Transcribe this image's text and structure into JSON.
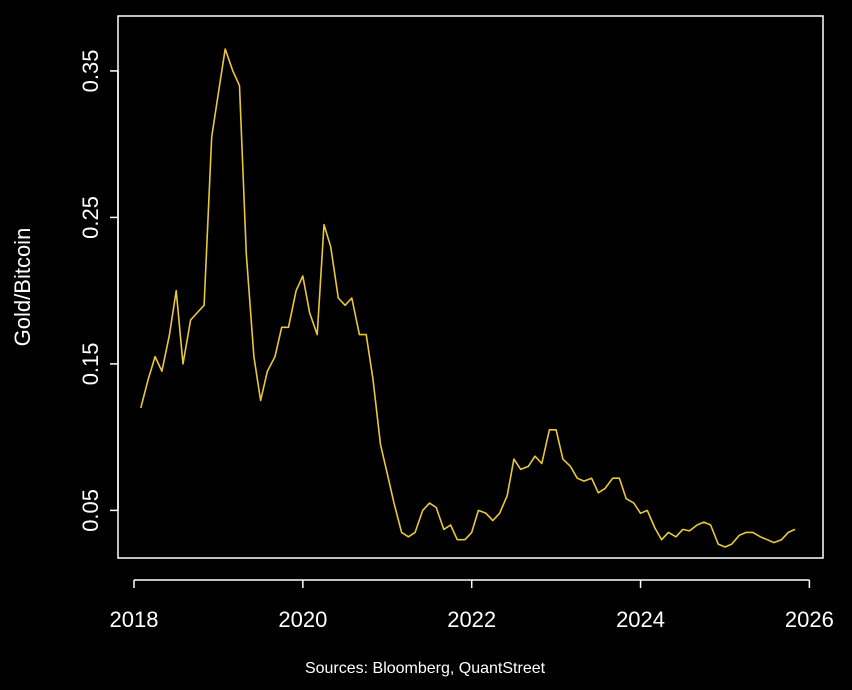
{
  "chart_data": {
    "type": "line",
    "title": "",
    "xlabel": "",
    "ylabel": "Gold/Bitcoin",
    "caption": "Sources: Bloomberg, QuantStreet",
    "xlim": [
      2018,
      2026
    ],
    "ylim": [
      0.0175,
      0.3875
    ],
    "x_ticks": [
      "2018",
      "2020",
      "2022",
      "2024",
      "2026"
    ],
    "y_ticks": [
      "0.05",
      "0.15",
      "0.25",
      "0.35"
    ],
    "grid": false,
    "line_color": "#e8c83a",
    "background_color": "#000000",
    "series": [
      {
        "x": [
          2018.08,
          2018.17,
          2018.25,
          2018.33,
          2018.42,
          2018.5,
          2018.58,
          2018.67,
          2018.75,
          2018.83,
          2018.92,
          2019.0,
          2019.08,
          2019.17,
          2019.25,
          2019.33,
          2019.42,
          2019.5,
          2019.58,
          2019.67,
          2019.75,
          2019.83,
          2019.92,
          2020.0,
          2020.08,
          2020.17,
          2020.25,
          2020.33,
          2020.42,
          2020.5,
          2020.58,
          2020.67,
          2020.75,
          2020.83,
          2020.92,
          2021.0,
          2021.08,
          2021.17,
          2021.25,
          2021.33,
          2021.42,
          2021.5,
          2021.58,
          2021.67,
          2021.75,
          2021.83,
          2021.92,
          2022.0,
          2022.08,
          2022.17,
          2022.25,
          2022.33,
          2022.42,
          2022.5,
          2022.58,
          2022.67,
          2022.75,
          2022.83,
          2022.92,
          2023.0,
          2023.08,
          2023.17,
          2023.25,
          2023.33,
          2023.42,
          2023.5,
          2023.58,
          2023.67,
          2023.75,
          2023.83,
          2023.92,
          2024.0,
          2024.08,
          2024.17,
          2024.25,
          2024.33,
          2024.42,
          2024.5,
          2024.58,
          2024.67,
          2024.75,
          2024.83,
          2024.92,
          2025.0,
          2025.08,
          2025.17,
          2025.25,
          2025.33,
          2025.42,
          2025.5,
          2025.58,
          2025.67,
          2025.75,
          2025.83
        ],
        "values": [
          0.12,
          0.14,
          0.155,
          0.145,
          0.17,
          0.2,
          0.15,
          0.18,
          0.185,
          0.19,
          0.305,
          0.335,
          0.365,
          0.35,
          0.34,
          0.225,
          0.155,
          0.125,
          0.145,
          0.155,
          0.175,
          0.175,
          0.2,
          0.21,
          0.185,
          0.17,
          0.245,
          0.23,
          0.195,
          0.19,
          0.195,
          0.17,
          0.17,
          0.14,
          0.095,
          0.075,
          0.055,
          0.035,
          0.032,
          0.035,
          0.05,
          0.055,
          0.052,
          0.037,
          0.04,
          0.03,
          0.03,
          0.035,
          0.05,
          0.048,
          0.043,
          0.048,
          0.06,
          0.085,
          0.078,
          0.08,
          0.087,
          0.082,
          0.105,
          0.105,
          0.085,
          0.08,
          0.072,
          0.07,
          0.072,
          0.062,
          0.065,
          0.072,
          0.072,
          0.058,
          0.055,
          0.048,
          0.05,
          0.038,
          0.03,
          0.035,
          0.032,
          0.037,
          0.036,
          0.04,
          0.042,
          0.04,
          0.027,
          0.025,
          0.027,
          0.033,
          0.035,
          0.035,
          0.032,
          0.03,
          0.028,
          0.03,
          0.035,
          0.037
        ]
      }
    ]
  }
}
